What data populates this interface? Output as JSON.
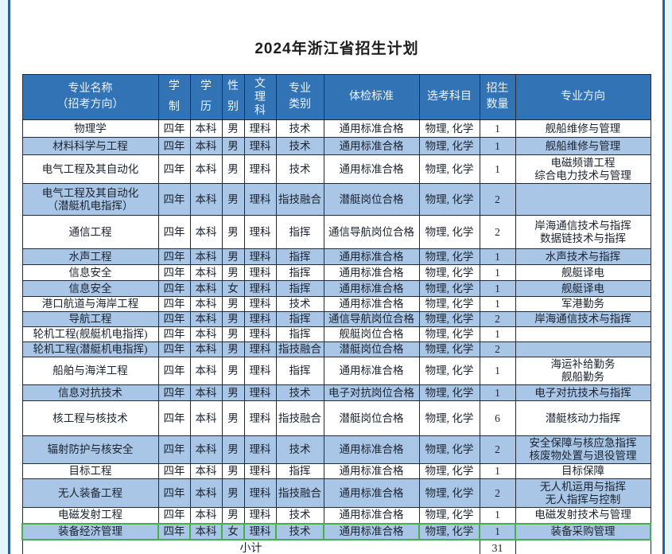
{
  "page": {
    "title": "2024年浙江省招生计划"
  },
  "colors": {
    "page_bg": "#e4f5fc",
    "frame_line": "#2e618f",
    "panel_bg": "#ffffff",
    "header_bg": "#3273b5",
    "header_text": "#edf4fb",
    "row_bg": "#ffffff",
    "row_alt_bg": "#a9c6e6",
    "grid": "#252b36",
    "text": "#1b2330",
    "highlight_border": "#44b04e"
  },
  "table": {
    "columns": [
      {
        "key": "name",
        "label": "专业名称\n（招考方向）"
      },
      {
        "key": "duration",
        "label": "学\n制"
      },
      {
        "key": "degree",
        "label": "学\n历"
      },
      {
        "key": "gender",
        "label": "性\n别"
      },
      {
        "key": "track",
        "label": "文\n理\n科"
      },
      {
        "key": "category",
        "label": "专业\n类别"
      },
      {
        "key": "medical",
        "label": "体检标准"
      },
      {
        "key": "subjects",
        "label": "选考科目"
      },
      {
        "key": "count",
        "label": "招生\n数量"
      },
      {
        "key": "direction",
        "label": "专业方向"
      }
    ],
    "rows": [
      {
        "name": "物理学",
        "duration": "四年",
        "degree": "本科",
        "gender": "男",
        "track": "理科",
        "category": "技术",
        "medical": "通用标准合格",
        "subjects": "物理, 化学",
        "count": "1",
        "direction": "舰船维修与管理",
        "highlight": false
      },
      {
        "name": "材料科学与工程",
        "duration": "四年",
        "degree": "本科",
        "gender": "男",
        "track": "理科",
        "category": "技术",
        "medical": "通用标准合格",
        "subjects": "物理, 化学",
        "count": "1",
        "direction": "舰船维修与管理",
        "highlight": false
      },
      {
        "name": "电气工程及其自动化",
        "duration": "四年",
        "degree": "本科",
        "gender": "男",
        "track": "理科",
        "category": "技术",
        "medical": "通用标准合格",
        "subjects": "物理, 化学",
        "count": "1",
        "direction": "电磁频谱工程\n综合电力技术与管理",
        "highlight": false
      },
      {
        "name": "电气工程及其自动化\n（潜艇机电指挥）",
        "duration": "四年",
        "degree": "本科",
        "gender": "男",
        "track": "理科",
        "category": "指技融合",
        "medical": "潜艇岗位合格",
        "subjects": "物理, 化学",
        "count": "2",
        "direction": "",
        "highlight": false
      },
      {
        "name": "通信工程",
        "duration": "四年",
        "degree": "本科",
        "gender": "男",
        "track": "理科",
        "category": "指挥",
        "medical": "通信导航岗位合格",
        "subjects": "物理, 化学",
        "count": "2",
        "direction": "岸海通信技术与指挥\n数据链技术与指挥",
        "highlight": false
      },
      {
        "name": "水声工程",
        "duration": "四年",
        "degree": "本科",
        "gender": "男",
        "track": "理科",
        "category": "指挥",
        "medical": "通用标准合格",
        "subjects": "物理, 化学",
        "count": "1",
        "direction": "水声技术与指挥",
        "highlight": false
      },
      {
        "name": "信息安全",
        "duration": "四年",
        "degree": "本科",
        "gender": "男",
        "track": "理科",
        "category": "指挥",
        "medical": "通用标准合格",
        "subjects": "物理, 化学",
        "count": "1",
        "direction": "舰艇译电",
        "highlight": false
      },
      {
        "name": "信息安全",
        "duration": "四年",
        "degree": "本科",
        "gender": "女",
        "track": "理科",
        "category": "指挥",
        "medical": "通用标准合格",
        "subjects": "物理, 化学",
        "count": "1",
        "direction": "舰艇译电",
        "highlight": false
      },
      {
        "name": "港口航道与海岸工程",
        "duration": "四年",
        "degree": "本科",
        "gender": "男",
        "track": "理科",
        "category": "技术",
        "medical": "通用标准合格",
        "subjects": "物理, 化学",
        "count": "1",
        "direction": "军港勤务",
        "highlight": false
      },
      {
        "name": "导航工程",
        "duration": "四年",
        "degree": "本科",
        "gender": "男",
        "track": "理科",
        "category": "指挥",
        "medical": "通信导航岗位合格",
        "subjects": "物理, 化学",
        "count": "2",
        "direction": "岸海通信技术与指挥",
        "highlight": false
      },
      {
        "name": "轮机工程(舰艇机电指挥)",
        "duration": "四年",
        "degree": "本科",
        "gender": "男",
        "track": "理科",
        "category": "指挥",
        "medical": "舰艇岗位合格",
        "subjects": "物理, 化学",
        "count": "1",
        "direction": "",
        "highlight": false
      },
      {
        "name": "轮机工程(潜艇机电指挥)",
        "duration": "四年",
        "degree": "本科",
        "gender": "男",
        "track": "理科",
        "category": "指技融合",
        "medical": "潜艇岗位合格",
        "subjects": "物理, 化学",
        "count": "2",
        "direction": "",
        "highlight": false
      },
      {
        "name": "船舶与海洋工程",
        "duration": "四年",
        "degree": "本科",
        "gender": "男",
        "track": "理科",
        "category": "指挥",
        "medical": "通用标准合格",
        "subjects": "物理, 化学",
        "count": "1",
        "direction": "海运补给勤务\n舰船勤务",
        "highlight": false
      },
      {
        "name": "信息对抗技术",
        "duration": "四年",
        "degree": "本科",
        "gender": "男",
        "track": "理科",
        "category": "技术",
        "medical": "电子对抗岗位合格",
        "subjects": "物理, 化学",
        "count": "1",
        "direction": "电子对抗技术与指挥",
        "highlight": false
      },
      {
        "name": "核工程与核技术",
        "duration": "四年",
        "degree": "本科",
        "gender": "男",
        "track": "理科",
        "category": "指技融合",
        "medical": "潜艇岗位合格",
        "subjects": "物理, 化学",
        "count": "6",
        "direction": "潜艇核动力指挥",
        "highlight": false
      },
      {
        "name": "辐射防护与核安全",
        "duration": "四年",
        "degree": "本科",
        "gender": "男",
        "track": "理科",
        "category": "技术",
        "medical": "通用标准合格",
        "subjects": "物理, 化学",
        "count": "2",
        "direction": "安全保障与核应急指挥\n核废物处置与退役管理",
        "highlight": false
      },
      {
        "name": "目标工程",
        "duration": "四年",
        "degree": "本科",
        "gender": "男",
        "track": "理科",
        "category": "指挥",
        "medical": "通用标准合格",
        "subjects": "物理, 化学",
        "count": "1",
        "direction": "目标保障",
        "highlight": false
      },
      {
        "name": "无人装备工程",
        "duration": "四年",
        "degree": "本科",
        "gender": "男",
        "track": "理科",
        "category": "指技融合",
        "medical": "通用标准合格",
        "subjects": "物理, 化学",
        "count": "2",
        "direction": "无人机运用与指挥\n无人指挥与控制",
        "highlight": false
      },
      {
        "name": "电磁发射工程",
        "duration": "四年",
        "degree": "本科",
        "gender": "男",
        "track": "理科",
        "category": "技术",
        "medical": "通用标准合格",
        "subjects": "物理, 化学",
        "count": "1",
        "direction": "电磁发射技术与管理",
        "highlight": false
      },
      {
        "name": "装备经济管理",
        "duration": "四年",
        "degree": "本科",
        "gender": "女",
        "track": "理科",
        "category": "技术",
        "medical": "通用标准合格",
        "subjects": "物理, 化学",
        "count": "1",
        "direction": "装备采购管理",
        "highlight": true
      }
    ],
    "footer": {
      "label": "小计",
      "total": "31"
    }
  }
}
